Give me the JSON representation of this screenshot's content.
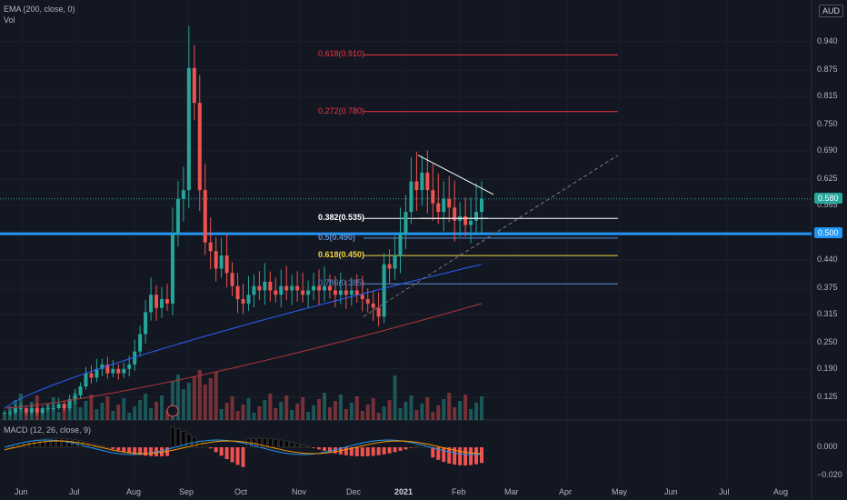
{
  "indicators": {
    "ema_label": "EMA (200, close, 0)",
    "vol_label": "Vol",
    "macd_label": "MACD (12, 26, close, 9)"
  },
  "currency": "AUD",
  "colors": {
    "bg": "#131722",
    "up": "#26a69a",
    "down": "#ef5350",
    "ema": "#b2353a",
    "ma": "#2962ff",
    "macd": "#2196f3",
    "signal": "#ff9800",
    "support": "#2196f3",
    "fib272": "#f23645",
    "fib618top": "#f23645",
    "fib382": "#ffffff",
    "fib05": "#5d8fd6",
    "fib618": "#f5d742",
    "fib786": "#5d8fd6"
  },
  "chart_data": {
    "type": "candlestick",
    "price_axis": {
      "ticks": [
        "0.940",
        "0.875",
        "0.815",
        "0.750",
        "0.690",
        "0.625",
        "0.565",
        "0.500",
        "0.440",
        "0.375",
        "0.315",
        "0.250",
        "0.190",
        "0.125"
      ],
      "last_price": "0.580",
      "support_level": "0.500"
    },
    "time_axis": {
      "ticks": [
        "Jun",
        "Jul",
        "Aug",
        "Sep",
        "Oct",
        "Nov",
        "Dec",
        "2021",
        "Feb",
        "Mar",
        "Apr",
        "May",
        "Jun",
        "Jul",
        "Aug"
      ]
    },
    "macd_axis": {
      "ticks": [
        "0.000",
        "−0.020"
      ]
    },
    "fib_levels": [
      {
        "label": "0.618(0.910)",
        "value": 0.91,
        "color": "#f23645"
      },
      {
        "label": "0.272(0.780)",
        "value": 0.78,
        "color": "#f23645"
      },
      {
        "label": "0.382(0.535)",
        "value": 0.535,
        "color": "#ffffff"
      },
      {
        "label": "0.5(0.490)",
        "value": 0.49,
        "color": "#5d8fd6"
      },
      {
        "label": "0.618(0.450)",
        "value": 0.45,
        "color": "#f5d742"
      },
      {
        "label": "0.786(0.385)",
        "value": 0.385,
        "color": "#5d8fd6"
      }
    ],
    "price_path": [
      0.09,
      0.09,
      0.1,
      0.1,
      0.09,
      0.1,
      0.09,
      0.1,
      0.1,
      0.1,
      0.11,
      0.1,
      0.12,
      0.13,
      0.15,
      0.18,
      0.17,
      0.19,
      0.2,
      0.18,
      0.19,
      0.18,
      0.19,
      0.2,
      0.23,
      0.27,
      0.32,
      0.36,
      0.33,
      0.35,
      0.34,
      0.5,
      0.58,
      0.6,
      0.88,
      0.8,
      0.6,
      0.48,
      0.46,
      0.42,
      0.45,
      0.41,
      0.38,
      0.35,
      0.34,
      0.36,
      0.38,
      0.37,
      0.39,
      0.37,
      0.36,
      0.38,
      0.37,
      0.38,
      0.37,
      0.36,
      0.37,
      0.38,
      0.37,
      0.38,
      0.37,
      0.36,
      0.37,
      0.36,
      0.37,
      0.36,
      0.35,
      0.34,
      0.33,
      0.31,
      0.43,
      0.42,
      0.45,
      0.5,
      0.55,
      0.62,
      0.6,
      0.64,
      0.6,
      0.57,
      0.55,
      0.58,
      0.56,
      0.53,
      0.54,
      0.52,
      0.53,
      0.55,
      0.58
    ]
  }
}
